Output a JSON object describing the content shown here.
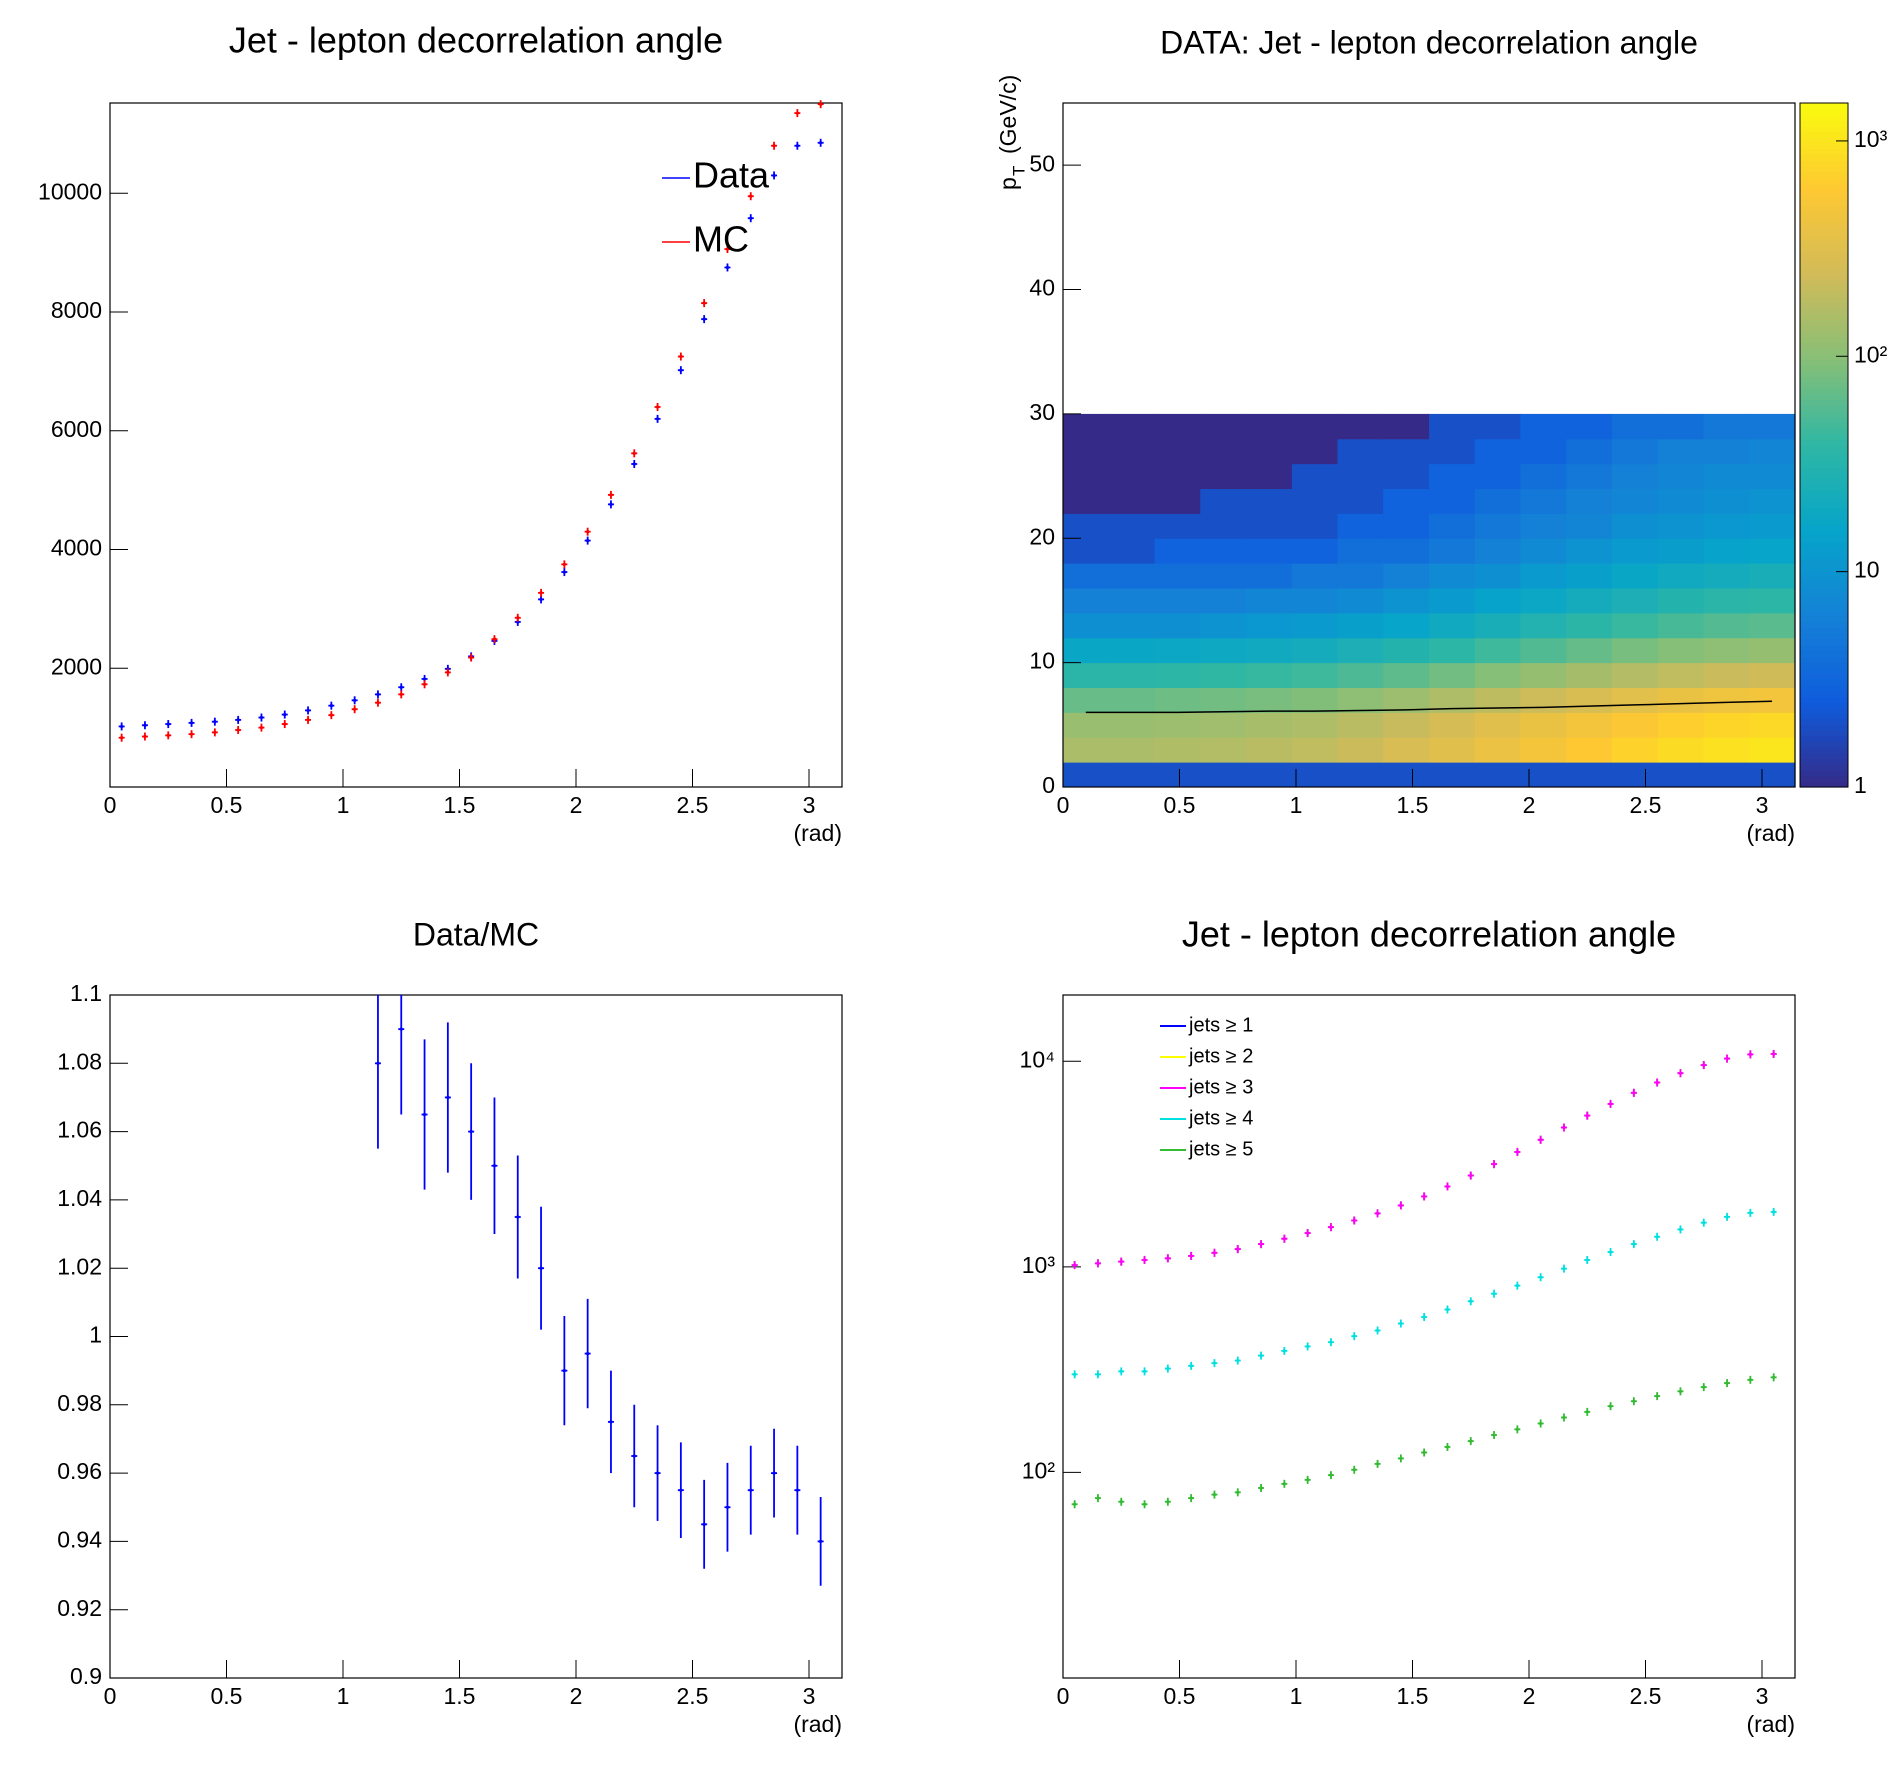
{
  "chart_data": [
    {
      "type": "errorbar",
      "title": "Jet - lepton decorrelation angle",
      "xlabel": "(rad)",
      "x": [
        0.05,
        0.15,
        0.25,
        0.35,
        0.45,
        0.55,
        0.65,
        0.75,
        0.85,
        0.95,
        1.05,
        1.15,
        1.25,
        1.35,
        1.45,
        1.55,
        1.65,
        1.75,
        1.85,
        1.95,
        2.05,
        2.15,
        2.25,
        2.35,
        2.45,
        2.55,
        2.65,
        2.75,
        2.85,
        2.95,
        3.05
      ],
      "series": [
        {
          "name": "Data",
          "color": "#0000ff",
          "values": [
            1020,
            1040,
            1060,
            1080,
            1100,
            1130,
            1170,
            1220,
            1290,
            1370,
            1460,
            1560,
            1680,
            1820,
            1990,
            2200,
            2460,
            2780,
            3160,
            3620,
            4150,
            4760,
            5440,
            6200,
            7020,
            7880,
            8750,
            9580,
            10300,
            10800,
            10850
          ]
        },
        {
          "name": "MC",
          "color": "#ff0000",
          "values": [
            830,
            850,
            870,
            890,
            920,
            960,
            1000,
            1060,
            1130,
            1210,
            1310,
            1420,
            1560,
            1730,
            1930,
            2180,
            2490,
            2850,
            3270,
            3750,
            4300,
            4920,
            5620,
            6400,
            7250,
            8150,
            9060,
            9950,
            10800,
            11350,
            11500
          ]
        }
      ],
      "xlim": [
        0,
        3.1416
      ],
      "xticks": [
        0,
        0.5,
        1,
        1.5,
        2,
        2.5,
        3
      ],
      "ylim": [
        0,
        11520
      ],
      "yticks": [
        2000,
        4000,
        6000,
        8000,
        10000
      ],
      "legend": "top right"
    },
    {
      "type": "heatmap",
      "title": "DATA: Jet - lepton decorrelation angle",
      "xlabel": "(rad)",
      "ylabel": {
        "symbol": "p",
        "subscript": "T",
        "unit": "(GeV/c)"
      },
      "xbins": [
        0,
        0.196,
        0.393,
        0.589,
        0.785,
        0.982,
        1.178,
        1.374,
        1.571,
        1.767,
        1.963,
        2.16,
        2.356,
        2.553,
        2.749,
        2.945,
        3.142
      ],
      "ybins": [
        0,
        2,
        4,
        6,
        8,
        10,
        12,
        14,
        16,
        18,
        20,
        22,
        24,
        26,
        28,
        30
      ],
      "z": [
        [
          2,
          2,
          2,
          2,
          2,
          2,
          2,
          2,
          2,
          2,
          2,
          2,
          2,
          2,
          2,
          2
        ],
        [
          150,
          150,
          158,
          165,
          180,
          195,
          225,
          270,
          330,
          405,
          495,
          600,
          720,
          840,
          945,
          1020
        ],
        [
          120,
          120,
          126,
          132,
          144,
          156,
          180,
          216,
          264,
          324,
          396,
          480,
          576,
          672,
          756,
          816
        ],
        [
          70,
          70,
          74,
          77,
          84,
          91,
          105,
          126,
          154,
          189,
          231,
          280,
          336,
          392,
          441,
          476
        ],
        [
          35,
          35,
          37,
          39,
          42,
          46,
          53,
          63,
          77,
          95,
          116,
          140,
          168,
          196,
          221,
          238
        ],
        [
          17,
          17,
          18,
          19,
          20,
          22,
          26,
          31,
          37,
          46,
          56,
          68,
          82,
          95,
          107,
          116
        ],
        [
          9,
          9,
          9,
          10,
          11,
          12,
          14,
          16,
          20,
          24,
          30,
          36,
          43,
          50,
          57,
          61
        ],
        [
          6,
          6,
          6,
          6,
          7,
          7,
          8,
          10,
          12,
          15,
          18,
          22,
          26,
          31,
          35,
          37
        ],
        [
          4,
          4,
          4,
          4,
          4,
          5,
          5,
          6,
          8,
          9,
          12,
          14,
          17,
          20,
          22,
          24
        ],
        [
          2,
          2,
          3,
          3,
          3,
          3,
          4,
          4,
          5,
          6,
          8,
          10,
          12,
          13,
          15,
          16
        ],
        [
          2,
          2,
          2,
          2,
          2,
          2,
          3,
          3,
          4,
          5,
          6,
          7,
          9,
          10,
          11,
          12
        ],
        [
          1,
          1,
          1,
          2,
          2,
          2,
          2,
          3,
          3,
          4,
          5,
          6,
          7,
          8,
          9,
          10
        ],
        [
          1,
          1,
          1,
          1,
          1,
          2,
          2,
          2,
          3,
          3,
          4,
          5,
          6,
          7,
          8,
          8
        ],
        [
          1,
          1,
          1,
          1,
          1,
          1,
          2,
          2,
          2,
          3,
          3,
          4,
          5,
          6,
          6,
          7
        ],
        [
          1,
          1,
          1,
          1,
          1,
          1,
          1,
          1,
          2,
          2,
          3,
          3,
          4,
          4,
          5,
          5
        ]
      ],
      "profile": {
        "color": "#000000",
        "x": [
          0.098,
          0.295,
          0.491,
          0.687,
          0.884,
          1.08,
          1.276,
          1.473,
          1.669,
          1.865,
          2.062,
          2.258,
          2.454,
          2.651,
          2.847,
          3.043
        ],
        "values": [
          6.0,
          6.0,
          6.0,
          6.05,
          6.1,
          6.1,
          6.15,
          6.2,
          6.3,
          6.35,
          6.4,
          6.5,
          6.6,
          6.7,
          6.8,
          6.9
        ]
      },
      "xlim": [
        0,
        3.1416
      ],
      "xticks": [
        0,
        0.5,
        1,
        1.5,
        2,
        2.5,
        3
      ],
      "ylim": [
        0,
        55
      ],
      "yticks": [
        0,
        10,
        20,
        30,
        40,
        50
      ],
      "zlim": [
        1,
        1500
      ],
      "zlog": true,
      "zticks": [
        1,
        10,
        {
          "value": 100,
          "label": "10²"
        },
        {
          "value": 1000,
          "label": "10³"
        }
      ]
    },
    {
      "type": "errorbar",
      "title": "Data/MC",
      "xlabel": "(rad)",
      "x": [
        1.15,
        1.25,
        1.35,
        1.45,
        1.55,
        1.65,
        1.75,
        1.85,
        1.95,
        2.05,
        2.15,
        2.25,
        2.35,
        2.45,
        2.55,
        2.65,
        2.75,
        2.85,
        2.95,
        3.05
      ],
      "series": [
        {
          "name": null,
          "color": "#0000ff",
          "values": [
            1.08,
            1.09,
            1.065,
            1.07,
            1.06,
            1.05,
            1.035,
            1.02,
            0.99,
            0.995,
            0.975,
            0.965,
            0.96,
            0.955,
            0.945,
            0.95,
            0.955,
            0.96,
            0.955,
            0.94
          ],
          "errors": [
            0.025,
            0.025,
            0.022,
            0.022,
            0.02,
            0.02,
            0.018,
            0.018,
            0.016,
            0.016,
            0.015,
            0.015,
            0.014,
            0.014,
            0.013,
            0.013,
            0.013,
            0.013,
            0.013,
            0.013
          ]
        }
      ],
      "xlim": [
        0,
        3.1416
      ],
      "xticks": [
        0,
        0.5,
        1,
        1.5,
        2,
        2.5,
        3
      ],
      "ylim": [
        0.9,
        1.1
      ],
      "yticks": [
        0.9,
        0.92,
        0.94,
        0.96,
        0.98,
        1,
        1.02,
        1.04,
        1.06,
        1.08,
        1.1
      ]
    },
    {
      "type": "errorbar",
      "title": "Jet - lepton decorrelation angle",
      "xlabel": "(rad)",
      "log_y": true,
      "x": [
        0.05,
        0.15,
        0.25,
        0.35,
        0.45,
        0.55,
        0.65,
        0.75,
        0.85,
        0.95,
        1.05,
        1.15,
        1.25,
        1.35,
        1.45,
        1.55,
        1.65,
        1.75,
        1.85,
        1.95,
        2.05,
        2.15,
        2.25,
        2.35,
        2.45,
        2.55,
        2.65,
        2.75,
        2.85,
        2.95,
        3.05
      ],
      "series": [
        {
          "name": "jets ≥ 1",
          "color": "#0000ff",
          "values": [
            1020,
            1040,
            1060,
            1080,
            1100,
            1130,
            1170,
            1220,
            1290,
            1370,
            1460,
            1560,
            1680,
            1820,
            1990,
            2200,
            2460,
            2780,
            3160,
            3620,
            4150,
            4760,
            5440,
            6200,
            7020,
            7880,
            8750,
            9580,
            10300,
            10800,
            10850
          ]
        },
        {
          "name": "jets ≥ 2",
          "color": "#ffff00",
          "values": [
            1020,
            1040,
            1060,
            1080,
            1100,
            1130,
            1170,
            1220,
            1290,
            1370,
            1460,
            1560,
            1680,
            1820,
            1990,
            2200,
            2460,
            2780,
            3160,
            3620,
            4150,
            4760,
            5440,
            6200,
            7020,
            7880,
            8750,
            9580,
            10300,
            10800,
            10850
          ]
        },
        {
          "name": "jets ≥ 3",
          "color": "#ff00ff",
          "values": [
            1020,
            1040,
            1060,
            1080,
            1100,
            1130,
            1170,
            1220,
            1290,
            1370,
            1460,
            1560,
            1680,
            1820,
            1990,
            2200,
            2460,
            2780,
            3160,
            3620,
            4150,
            4760,
            5440,
            6200,
            7020,
            7880,
            8750,
            9580,
            10300,
            10800,
            10850
          ]
        },
        {
          "name": "jets ≥ 4",
          "color": "#00e0e0",
          "values": [
            300,
            300,
            310,
            310,
            320,
            330,
            340,
            350,
            370,
            390,
            410,
            430,
            460,
            490,
            530,
            570,
            620,
            680,
            740,
            810,
            890,
            980,
            1080,
            1180,
            1290,
            1400,
            1520,
            1640,
            1750,
            1830,
            1850
          ]
        },
        {
          "name": "jets ≥ 5",
          "color": "#33bb33",
          "values": [
            70,
            75,
            72,
            70,
            72,
            75,
            78,
            80,
            84,
            88,
            92,
            97,
            103,
            110,
            117,
            125,
            133,
            142,
            152,
            162,
            173,
            185,
            197,
            210,
            222,
            235,
            248,
            260,
            272,
            282,
            290
          ]
        }
      ],
      "xlim": [
        0,
        3.1416
      ],
      "xticks": [
        0,
        0.5,
        1,
        1.5,
        2,
        2.5,
        3
      ],
      "ylim": [
        10,
        21000
      ],
      "yticks": [
        {
          "value": 100,
          "label": "10²"
        },
        {
          "value": 1000,
          "label": "10³"
        },
        {
          "value": 10000,
          "label": "10⁴"
        }
      ],
      "legend": "top left"
    }
  ]
}
